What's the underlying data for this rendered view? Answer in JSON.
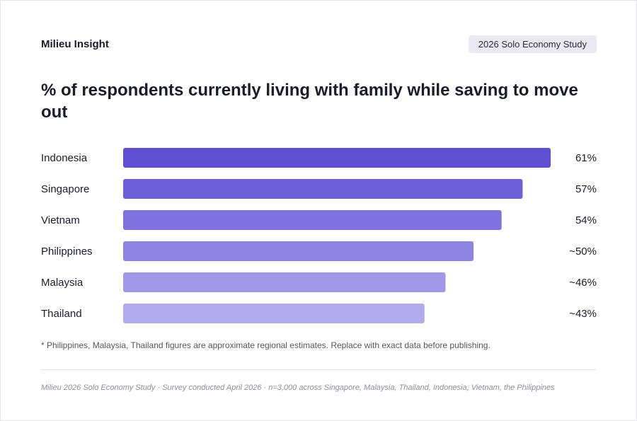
{
  "header": {
    "brand": "Milieu Insight",
    "badge": "2026 Solo Economy Study"
  },
  "chart_data": {
    "type": "bar",
    "orientation": "horizontal",
    "title": "% of respondents currently living with family while saving to move out",
    "categories": [
      "Indonesia",
      "Singapore",
      "Vietnam",
      "Philippines",
      "Malaysia",
      "Thailand"
    ],
    "values": [
      61,
      57,
      54,
      50,
      46,
      43
    ],
    "value_labels": [
      "61%",
      "57%",
      "54%",
      "~50%",
      "~46%",
      "~43%"
    ],
    "colors": [
      "#5e4fd3",
      "#6e60d8",
      "#7f72de",
      "#8f84e2",
      "#a198e7",
      "#b2aaeb"
    ],
    "xlim": [
      0,
      61
    ],
    "grid": false,
    "legend": "none"
  },
  "note": "* Philippines, Malaysia, Thailand figures are approximate regional estimates. Replace with exact data before publishing.",
  "footer": "Milieu 2026 Solo Economy Study · Survey conducted April 2026 · n=3,000 across Singapore, Malaysia, Thailand, Indonesia, Vietnam, the Philippines"
}
